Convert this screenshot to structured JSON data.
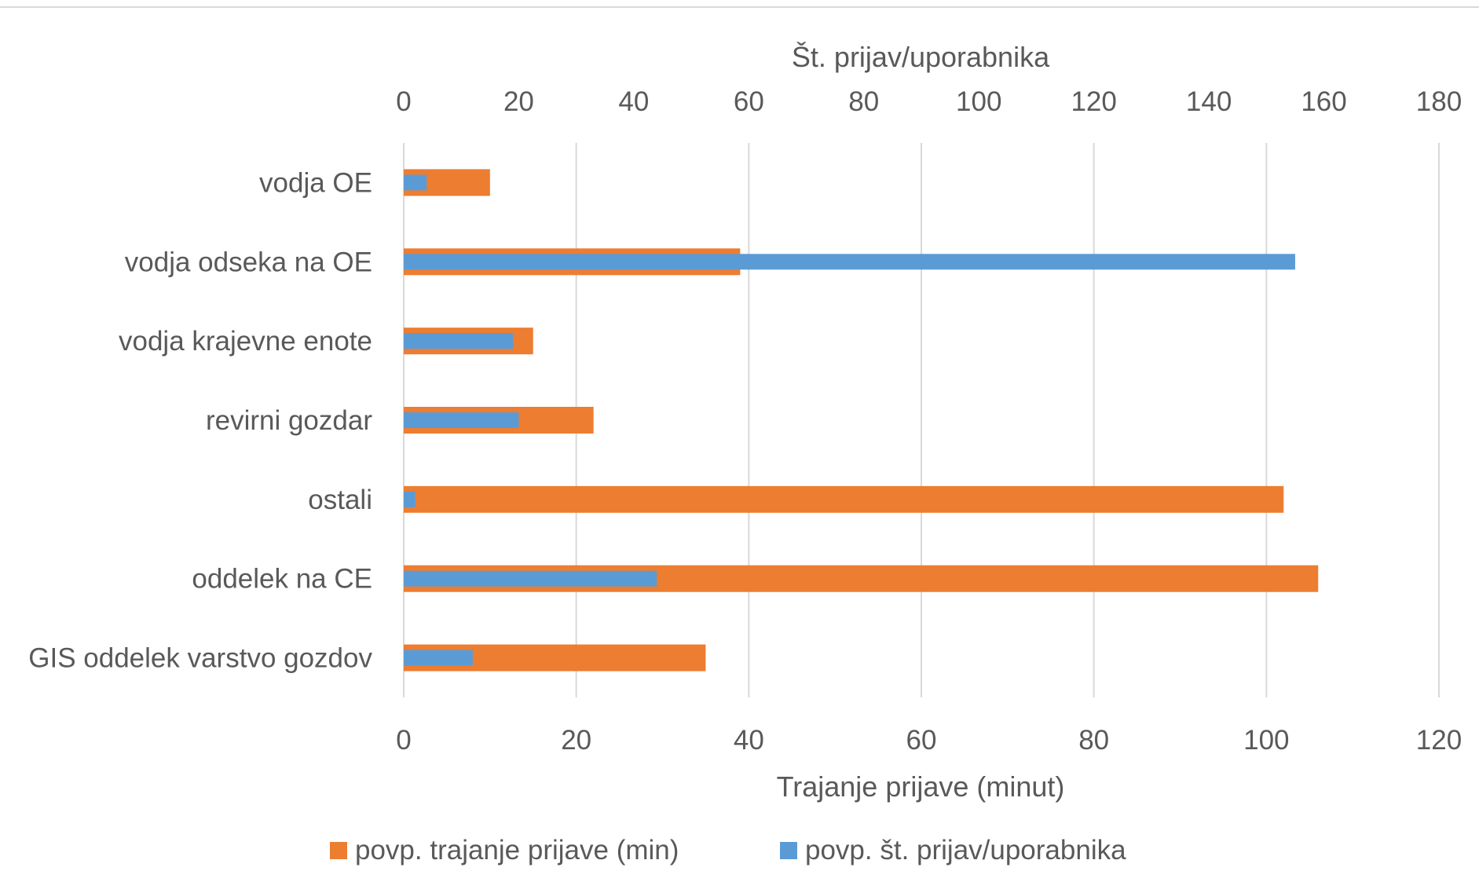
{
  "chart_data": {
    "type": "bar",
    "orientation": "horizontal",
    "categories": [
      "vodja OE",
      "vodja odseka na OE",
      "vodja krajevne enote",
      "revirni gozdar",
      "ostali",
      "oddelek na CE",
      "GIS oddelek varstvo gozdov"
    ],
    "series": [
      {
        "name": "povp. trajanje prijave (min)",
        "axis": "bottom",
        "color": "#ED7D31",
        "values": [
          10,
          39,
          15,
          22,
          102,
          106,
          35
        ]
      },
      {
        "name": "povp. št. prijav/uporabnika",
        "axis": "top",
        "color": "#5B9BD5",
        "values": [
          4,
          155,
          19,
          20,
          2,
          44,
          12
        ]
      }
    ],
    "bottom_axis": {
      "label": "Trajanje prijave (minut)",
      "range": [
        0,
        120
      ],
      "ticks": [
        "0",
        "20",
        "40",
        "60",
        "80",
        "100",
        "120"
      ]
    },
    "top_axis": {
      "label": "Št. prijav/uporabnika",
      "range": [
        0,
        180
      ],
      "ticks": [
        "0",
        "20",
        "40",
        "60",
        "80",
        "100",
        "120",
        "140",
        "160",
        "180"
      ]
    },
    "grid": true,
    "legend_position": "bottom"
  }
}
